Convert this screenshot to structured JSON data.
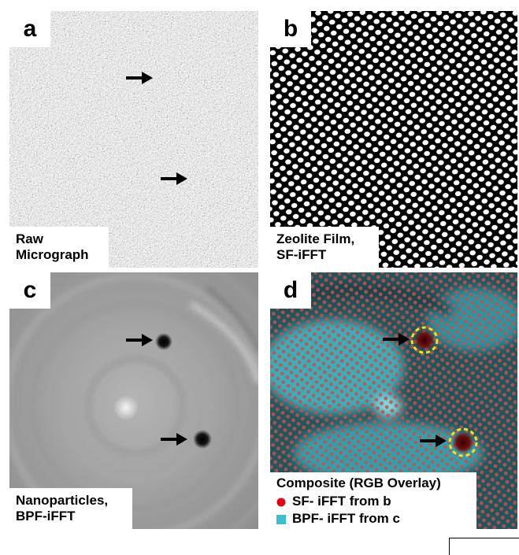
{
  "figure": {
    "panels": [
      {
        "id": "a",
        "letter": "a",
        "caption_lines": [
          "Raw",
          "Micrograph"
        ]
      },
      {
        "id": "b",
        "letter": "b",
        "caption_lines": [
          "Zeolite Film,",
          "SF-iFFT"
        ]
      },
      {
        "id": "c",
        "letter": "c",
        "caption_lines": [
          "Nanoparticles,",
          "BPF-iFFT"
        ]
      },
      {
        "id": "d",
        "letter": "d",
        "caption_lines": [
          "Composite (RGB Overlay)"
        ]
      }
    ],
    "legend": {
      "title": "Composite (RGB Overlay)",
      "items": [
        {
          "label": "SF- iFFT from b",
          "symbol": "red-dot-icon",
          "color": "#e0001b"
        },
        {
          "label": "BPF- iFFT from c",
          "symbol": "cyan-square-icon",
          "color": "#3ebfd0"
        }
      ]
    },
    "colors": {
      "highlight_circle": "#f5e21a",
      "arrow": "#000000",
      "background": "#ffffff"
    }
  }
}
